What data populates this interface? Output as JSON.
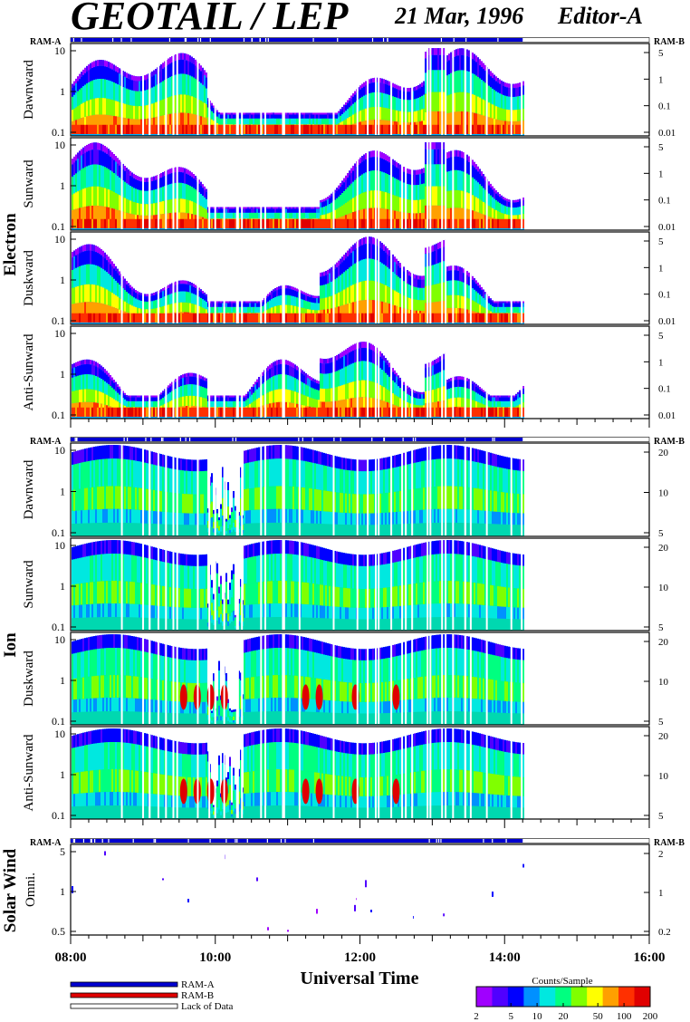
{
  "header": {
    "title": "GEOTAIL / LEP",
    "date": "21 Mar, 1996",
    "editor": "Editor-A"
  },
  "bar_labels": {
    "left": "RAM-A",
    "right": "RAM-B"
  },
  "legend": {
    "items": [
      {
        "label": "RAM-A",
        "color": "#0000d0"
      },
      {
        "label": "RAM-B",
        "color": "#e00000"
      },
      {
        "label": "Lack of Data",
        "color": "#ffffff"
      }
    ]
  },
  "colorbar": {
    "title": "Counts/Sample",
    "ticks": [
      "2",
      "5",
      "10",
      "20",
      "50",
      "100",
      "200"
    ],
    "colors": [
      "#a000ff",
      "#5000ff",
      "#0000ff",
      "#0090ff",
      "#00e8e0",
      "#00ff80",
      "#80ff00",
      "#ffff00",
      "#ffa000",
      "#ff3000",
      "#e00000"
    ]
  },
  "chart_data": {
    "type": "heatmap",
    "xlabel": "Universal Time",
    "x_ticks": [
      "08:00",
      "10:00",
      "12:00",
      "14:00",
      "16:00"
    ],
    "x_range": [
      "08:00",
      "16:00"
    ],
    "data_end": "14:15",
    "groups": [
      {
        "name": "Electron",
        "panels": [
          {
            "label": "Dawnward",
            "y_left_ticks": [
              "10",
              "1",
              "0.1"
            ],
            "y_right_ticks": [
              "5",
              "1",
              "0.1",
              "0.01"
            ]
          },
          {
            "label": "Sunward",
            "y_left_ticks": [
              "10",
              "1",
              "0.1"
            ],
            "y_right_ticks": [
              "5",
              "1",
              "0.1",
              "0.01"
            ]
          },
          {
            "label": "Duskward",
            "y_left_ticks": [
              "10",
              "1",
              "0.1"
            ],
            "y_right_ticks": [
              "5",
              "1",
              "0.1",
              "0.01"
            ]
          },
          {
            "label": "Anti-Sunward",
            "y_left_ticks": [
              "10",
              "1",
              "0.1"
            ],
            "y_right_ticks": [
              "5",
              "1",
              "0.1",
              "0.01"
            ]
          }
        ]
      },
      {
        "name": "Ion",
        "panels": [
          {
            "label": "Dawnward",
            "y_left_ticks": [
              "10",
              "1",
              "0.1"
            ],
            "y_right_ticks": [
              "20",
              "10",
              "5"
            ]
          },
          {
            "label": "Sunward",
            "y_left_ticks": [
              "10",
              "1",
              "0.1"
            ],
            "y_right_ticks": [
              "20",
              "10",
              "5"
            ]
          },
          {
            "label": "Duskward",
            "y_left_ticks": [
              "10",
              "1",
              "0.1"
            ],
            "y_right_ticks": [
              "20",
              "10",
              "5"
            ]
          },
          {
            "label": "Anti-Sunward",
            "y_left_ticks": [
              "10",
              "1",
              "0.1"
            ],
            "y_right_ticks": [
              "20",
              "10",
              "5"
            ]
          }
        ]
      },
      {
        "name": "Solar Wind",
        "panels": [
          {
            "label": "Omni.",
            "y_left_ticks": [
              "5",
              "1",
              "0.5"
            ],
            "y_right_ticks": [
              "2",
              "1",
              "0.2"
            ]
          }
        ]
      }
    ]
  }
}
